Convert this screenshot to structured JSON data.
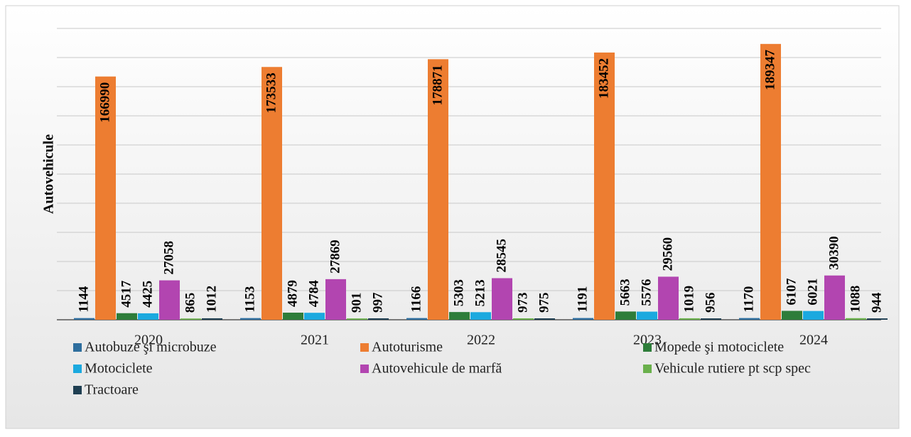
{
  "chart_data": {
    "type": "bar",
    "y_label": "Autovehicule",
    "categories": [
      "2020",
      "2021",
      "2022",
      "2023",
      "2024"
    ],
    "series": [
      {
        "name": "Autobuze şi microbuze",
        "color": "#2e6e9e",
        "values": [
          1144,
          1153,
          1166,
          1191,
          1170
        ]
      },
      {
        "name": "Autoturisme",
        "color": "#ed7d31",
        "values": [
          166990,
          173533,
          178871,
          183452,
          189347
        ]
      },
      {
        "name": "Mopede şi motociclete",
        "color": "#2e7d3a",
        "values": [
          4517,
          4879,
          5303,
          5663,
          6107
        ]
      },
      {
        "name": "Motociclete",
        "color": "#1ba9df",
        "values": [
          4425,
          4784,
          5213,
          5576,
          6021
        ]
      },
      {
        "name": "Autovehicule de marfă",
        "color": "#b245b0",
        "values": [
          27058,
          27869,
          28545,
          29560,
          30390
        ]
      },
      {
        "name": "Vehicule rutiere pt scp spec",
        "color": "#6ab04c",
        "values": [
          865,
          901,
          973,
          1019,
          1088
        ]
      },
      {
        "name": "Tractoare",
        "color": "#1f3f52",
        "values": [
          1012,
          997,
          975,
          956,
          944
        ]
      }
    ],
    "ylim": [
      0,
      200000
    ],
    "yticks": [
      0,
      20000,
      40000,
      60000,
      80000,
      100000,
      120000,
      140000,
      160000,
      180000,
      200000
    ],
    "grid": true,
    "legend": "bottom"
  }
}
